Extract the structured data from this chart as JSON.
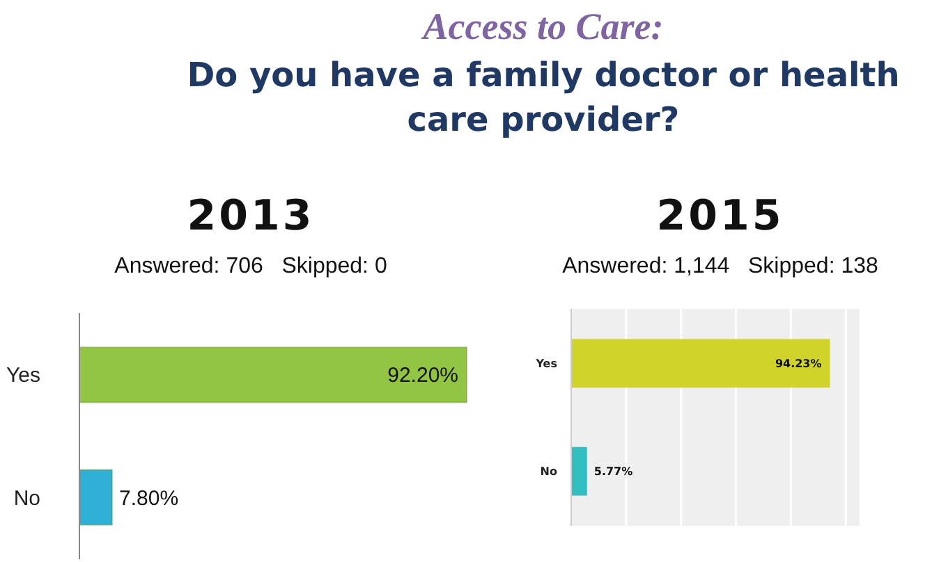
{
  "chart_data": [
    {
      "type": "other",
      "title": "Access to Care:",
      "subtitle": "Do you have a family doctor or health care provider?"
    },
    {
      "type": "bar",
      "orientation": "horizontal",
      "title": "2013",
      "subtitle": "Answered: 706   Skipped: 0",
      "categories": [
        "Yes",
        "No"
      ],
      "values": [
        92.2,
        7.8
      ],
      "colors": [
        "#92c543",
        "#2fb0d6"
      ],
      "value_labels": [
        "92.20%",
        "7.80%"
      ],
      "tick_labels": "y",
      "grid": false
    },
    {
      "type": "bar",
      "orientation": "horizontal",
      "title": "2015",
      "subtitle": "Answered: 1,144   Skipped: 138",
      "categories": [
        "Yes",
        "No"
      ],
      "values": [
        94.23,
        5.77
      ],
      "colors": [
        "#d0d42a",
        "#33bfbf"
      ],
      "value_labels": [
        "94.23%",
        "5.77%"
      ],
      "xlim": [
        0,
        105
      ],
      "xticks": [
        {
          "value": 20,
          "label": null
        },
        {
          "value": 40,
          "label": null
        },
        {
          "value": 60,
          "label": null
        },
        {
          "value": 80,
          "label": null
        },
        {
          "value": 100,
          "label": null
        }
      ],
      "tick_labels": "y",
      "grid": "x"
    }
  ]
}
